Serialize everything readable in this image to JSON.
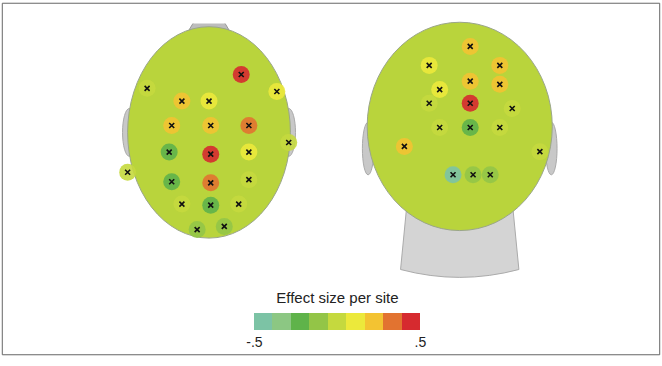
{
  "chart_data": {
    "type": "topographic_map",
    "title": "Effect size per site",
    "colorbar": {
      "range": [
        -0.5,
        0.5
      ],
      "ticks": [
        {
          "value": -0.5,
          "label": "-.5"
        },
        {
          "value": 0.5,
          "label": ".5"
        }
      ],
      "colors": [
        "#7cc3a5",
        "#8cc783",
        "#5fb34a",
        "#93c547",
        "#c5d93e",
        "#ece93b",
        "#f3c332",
        "#e27330",
        "#d62a2f"
      ]
    },
    "views": [
      {
        "sites": {
          "x": [
            -0.32,
            0.0,
            0.38,
            -0.44,
            0.02,
            0.47,
            -0.47,
            0.02,
            0.47,
            -0.44,
            0.02,
            0.47,
            -0.32,
            0.02,
            0.35,
            -0.14,
            0.18,
            -0.96,
            0.94,
            -0.73,
            0.8
          ],
          "y": [
            0.32,
            0.32,
            0.57,
            0.09,
            0.09,
            0.09,
            -0.16,
            -0.18,
            -0.16,
            -0.44,
            -0.45,
            -0.42,
            -0.65,
            -0.66,
            -0.65,
            -0.89,
            -0.86,
            -0.35,
            -0.07,
            0.44,
            0.41
          ],
          "values": [
            0.25,
            0.15,
            0.4,
            0.2,
            0.25,
            0.35,
            -0.2,
            0.4,
            0.15,
            -0.2,
            0.3,
            0.05,
            -0.05,
            -0.2,
            0.0,
            -0.1,
            -0.1,
            -0.05,
            0.0,
            0.05,
            0.1
          ]
        }
      },
      {
        "sites": {
          "x": [
            -0.32,
            0.11,
            0.42,
            0.11,
            -0.21,
            0.42,
            0.11,
            -0.32,
            0.55,
            -0.58,
            -0.21,
            0.11,
            0.42,
            0.84,
            -0.07,
            0.14,
            0.32
          ],
          "y": [
            0.59,
            0.77,
            0.59,
            0.44,
            0.36,
            0.41,
            0.23,
            0.23,
            0.18,
            -0.18,
            0.0,
            0.0,
            0.0,
            -0.23,
            -0.45,
            -0.45,
            -0.45
          ],
          "values": [
            0.1,
            0.2,
            0.2,
            0.25,
            0.15,
            0.2,
            0.4,
            0.05,
            0.05,
            0.25,
            -0.05,
            -0.2,
            0.0,
            -0.05,
            -0.4,
            -0.15,
            -0.1
          ]
        }
      }
    ]
  }
}
